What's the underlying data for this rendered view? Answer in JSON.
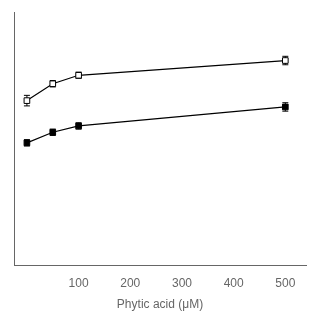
{
  "chart_data": {
    "type": "line",
    "x": [
      0,
      50,
      100,
      500
    ],
    "series": [
      {
        "color": "#000000",
        "marker": "open_square",
        "values": [
          0.78,
          0.86,
          0.9,
          0.97
        ],
        "yerr": [
          0.025,
          0.015,
          0.015,
          0.02
        ]
      },
      {
        "color": "#000000",
        "marker": "square",
        "values": [
          0.58,
          0.63,
          0.66,
          0.75
        ],
        "yerr": [
          0.015,
          0.015,
          0.015,
          0.02
        ]
      }
    ],
    "x_label": "Phytic acid (μM)",
    "xlim": [
      -25,
      540
    ],
    "xticks": [
      100,
      200,
      300,
      400,
      500
    ],
    "ylim": [
      0.0,
      1.2
    ],
    "yticks": [],
    "grid": false,
    "tick_labels": "x"
  }
}
